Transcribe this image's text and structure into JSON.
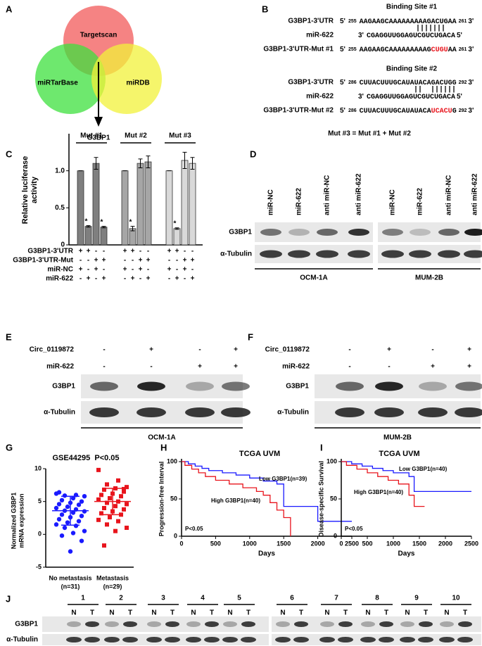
{
  "panel_labels": [
    "A",
    "B",
    "C",
    "D",
    "E",
    "F",
    "G",
    "H",
    "I",
    "J"
  ],
  "venn": {
    "circles": [
      "Targetscan",
      "miRTarBase",
      "miRDB"
    ],
    "result": "G3BP1"
  },
  "binding_sites": [
    {
      "title": "Binding Site #1",
      "pairing": "|||||||",
      "rows": [
        {
          "label": "G3BP1-3'UTR",
          "label_color": "#000000",
          "left": "5'",
          "start": "255",
          "seq": [
            {
              "text": "AAGAAGCAAAAAAAAAGACUGAA",
              "color": "#000000"
            }
          ],
          "end": "261",
          "right": "3'"
        },
        {
          "label": "miR-622",
          "label_color": "#e8141c",
          "left": "3'",
          "seq": [
            {
              "text": "CGAGGUUGGAGUCGUCUGACA",
              "color": "#000000"
            }
          ],
          "right": "5'"
        },
        {
          "label": "G3BP1-3'UTR-Mut #1",
          "label_color": "#000000",
          "left": "5'",
          "start": "255",
          "seq": [
            {
              "text": "AAGAAGCAAAAAAAAAG",
              "color": "#000000"
            },
            {
              "text": "CUGU",
              "color": "#e8141c"
            },
            {
              "text": "AA",
              "color": "#000000"
            }
          ],
          "end": "261",
          "right": "3'"
        }
      ]
    },
    {
      "title": "Binding Site #2",
      "pairing": "||  ||||||",
      "rows": [
        {
          "label": "G3BP1-3'UTR",
          "label_color": "#000000",
          "left": "5'",
          "start": "286",
          "seq": [
            {
              "text": "CUUACUUUGCAUAUACAGACUGG",
              "color": "#000000"
            }
          ],
          "end": "292",
          "right": "3'"
        },
        {
          "label": "miR-622",
          "label_color": "#e8141c",
          "left": "3'",
          "seq": [
            {
              "text": "CGAGGUUGGAGUCGUCUGACA",
              "color": "#000000"
            }
          ],
          "right": "5'"
        },
        {
          "label": "G3BP1-3'UTR-Mut #2",
          "label_color": "#000000",
          "left": "5'",
          "start": "286",
          "seq": [
            {
              "text": "CUUACUUUGCAUAUACA",
              "color": "#000000"
            },
            {
              "text": "UCACU",
              "color": "#e8141c"
            },
            {
              "text": "G",
              "color": "#000000"
            }
          ],
          "end": "292",
          "right": "3'"
        }
      ]
    }
  ],
  "mut_note": "Mut #3 = Mut #1 + Mut #2",
  "panel_d": {
    "lanes": [
      "miR-NC",
      "miR-622",
      "anti miR-NC",
      "anti miR-622"
    ],
    "rows": [
      "G3BP1",
      "α-Tubulin"
    ],
    "cell_lines": [
      "OCM-1A",
      "MUM-2B"
    ]
  },
  "panel_e": {
    "conditions": [
      {
        "label": "Circ_0119872",
        "marks": [
          "-",
          "+",
          "-",
          "+"
        ]
      },
      {
        "label": "miR-622",
        "marks": [
          "-",
          "-",
          "+",
          "+"
        ]
      }
    ],
    "rows": [
      "G3BP1",
      "α-Tubulin"
    ],
    "cell_line": "OCM-1A"
  },
  "panel_f": {
    "conditions": [
      {
        "label": "Circ_0119872",
        "marks": [
          "-",
          "+",
          "-",
          "+"
        ]
      },
      {
        "label": "miR-622",
        "marks": [
          "-",
          "-",
          "+",
          "+"
        ]
      }
    ],
    "rows": [
      "G3BP1",
      "α-Tubulin"
    ],
    "cell_line": "MUM-2B"
  },
  "panel_j": {
    "samples": [
      "1",
      "2",
      "3",
      "4",
      "5",
      "6",
      "7",
      "8",
      "9",
      "10"
    ],
    "lanes": [
      "N",
      "T"
    ],
    "rows": [
      "G3BP1",
      "α-Tubulin"
    ]
  },
  "chart_data": [
    {
      "type": "bar",
      "ylabel": [
        "Relative luciferase",
        "activity"
      ],
      "ylim": [
        0,
        1.5
      ],
      "yticks": [
        0,
        0.5,
        {
          "value": 1,
          "label": "1.0"
        }
      ],
      "series": [
        {
          "name": "Mut #1",
          "color": "#7f7f7f",
          "values": [
            1.0,
            0.25,
            1.1,
            0.24
          ],
          "errors": [
            0.0,
            0.01,
            0.08,
            0.01
          ],
          "significance": [
            null,
            "*",
            null,
            "*"
          ]
        },
        {
          "name": "Mut #2",
          "color": "#a6a6a6",
          "values": [
            1.0,
            0.22,
            1.1,
            1.12
          ],
          "errors": [
            0.0,
            0.03,
            0.06,
            0.08
          ],
          "significance": [
            null,
            "*",
            null,
            null
          ]
        },
        {
          "name": "Mut #3",
          "color": "#d9d9d9",
          "values": [
            1.0,
            0.22,
            1.14,
            1.1
          ],
          "errors": [
            0.0,
            0.01,
            0.11,
            0.08
          ],
          "significance": [
            null,
            "*",
            null,
            null
          ]
        }
      ],
      "conditions": [
        {
          "label": "G3BP1-3'UTR",
          "marks": [
            "+",
            "+",
            "-",
            "-"
          ]
        },
        {
          "label": "G3BP1-3'UTR-Mut",
          "marks": [
            "-",
            "-",
            "+",
            "+"
          ]
        },
        {
          "label": "miR-NC",
          "marks": [
            "+",
            "-",
            "+",
            "-"
          ]
        },
        {
          "label": "miR-622",
          "marks": [
            "-",
            "+",
            "-",
            "+"
          ]
        }
      ]
    },
    {
      "type": "scatter",
      "title": "GSE44295  P<0.05",
      "ylabel": [
        "Normalized G3BP1",
        "mRNA expression"
      ],
      "ylim": [
        -5,
        10
      ],
      "yticks": [
        -5,
        0,
        5,
        10
      ],
      "categories": [
        "No metastasis",
        "Metastasis"
      ],
      "category_notes": [
        "(n=31)",
        "(n=29)"
      ],
      "series": [
        {
          "name": "No metastasis",
          "color": "#1a1aff",
          "marker": "circle",
          "mean": 3.6,
          "sd": 2.2,
          "values": [
            6.2,
            6.0,
            5.9,
            5.8,
            5.5,
            5.2,
            5.0,
            4.8,
            4.6,
            4.5,
            4.2,
            4.0,
            3.8,
            3.6,
            3.5,
            3.3,
            3.0,
            2.8,
            2.6,
            2.3,
            2.0,
            1.8,
            1.5,
            1.3,
            1.0,
            0.5,
            0.2,
            -0.2,
            -1.0,
            -2.6,
            6.4
          ]
        },
        {
          "name": "Metastasis",
          "color": "#e8141c",
          "marker": "square",
          "mean": 5.0,
          "sd": 2.0,
          "values": [
            9.8,
            8.2,
            7.6,
            7.2,
            7.0,
            6.8,
            6.5,
            6.2,
            6.0,
            5.8,
            5.5,
            5.3,
            5.0,
            4.8,
            4.6,
            4.3,
            4.0,
            3.8,
            3.5,
            3.2,
            3.0,
            2.6,
            2.2,
            2.0,
            1.5,
            1.0,
            0.5,
            -1.7,
            6.9
          ]
        }
      ]
    },
    {
      "type": "line",
      "step": true,
      "title": "TCGA UVM",
      "xlabel": "Days",
      "ylabel": "Progression-free Interval",
      "annotation": "P<0.05",
      "xlim": [
        0,
        2500
      ],
      "xticks": [
        0,
        500,
        1000,
        1500,
        2000,
        2500
      ],
      "ylim": [
        0,
        100
      ],
      "yticks": [
        0,
        50,
        100
      ],
      "series": [
        {
          "name": "Low G3BP1(n=39)",
          "color": "#1a1aff",
          "x": [
            0,
            100,
            200,
            300,
            400,
            600,
            800,
            1000,
            1200,
            1400,
            1500,
            2000,
            2500
          ],
          "values": [
            100,
            97,
            94,
            91,
            88,
            85,
            82,
            78,
            74,
            70,
            40,
            20,
            20
          ]
        },
        {
          "name": "High G3BP1(n=40)",
          "color": "#e8141c",
          "x": [
            0,
            50,
            150,
            250,
            350,
            500,
            700,
            900,
            1100,
            1200,
            1300,
            1400,
            1500,
            1600
          ],
          "values": [
            100,
            95,
            90,
            85,
            80,
            75,
            70,
            65,
            60,
            55,
            45,
            35,
            25,
            0
          ]
        }
      ]
    },
    {
      "type": "line",
      "step": true,
      "title": "TCGA UVM",
      "xlabel": "Days",
      "ylabel": "Disease-specific Survival",
      "annotation": "P<0.05",
      "xlim": [
        0,
        2500
      ],
      "xticks": [
        0,
        500,
        1000,
        1500,
        2000,
        2500
      ],
      "ylim": [
        0,
        100
      ],
      "yticks": [
        0,
        50,
        100
      ],
      "series": [
        {
          "name": "Low G3BP1(n=40)",
          "color": "#1a1aff",
          "x": [
            0,
            200,
            400,
            600,
            800,
            1000,
            1300,
            1400,
            2500
          ],
          "values": [
            100,
            97,
            94,
            91,
            88,
            85,
            80,
            60,
            60
          ]
        },
        {
          "name": "High G3BP1(n=40)",
          "color": "#e8141c",
          "x": [
            0,
            100,
            300,
            500,
            700,
            900,
            1100,
            1300,
            1400,
            1600
          ],
          "values": [
            100,
            95,
            90,
            85,
            80,
            75,
            70,
            55,
            40,
            40
          ]
        }
      ]
    }
  ]
}
